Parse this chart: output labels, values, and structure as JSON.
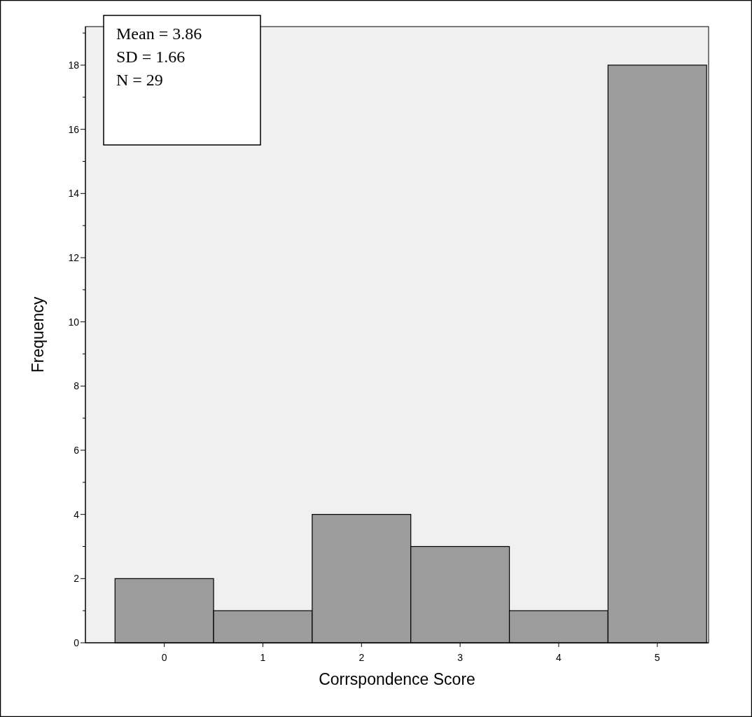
{
  "chart_data": {
    "type": "histogram",
    "xlabel": "Corrspondence Score",
    "ylabel": "Frequency",
    "bins": [
      -0.5,
      0.5,
      1.5,
      2.5,
      3.5,
      4.5,
      5.5
    ],
    "values": [
      2,
      1,
      4,
      3,
      1,
      18
    ],
    "color": "#9c9c9c",
    "xlim": [
      -0.8,
      5.52
    ],
    "xticks": [
      0,
      1,
      2,
      3,
      4,
      5
    ],
    "ylim": [
      0,
      19.2
    ],
    "yticks": [
      0,
      {
        "value": 1,
        "label": null
      },
      2,
      {
        "value": 3,
        "label": null
      },
      4,
      {
        "value": 5,
        "label": null
      },
      6,
      {
        "value": 7,
        "label": null
      },
      8,
      {
        "value": 9,
        "label": null
      },
      10,
      {
        "value": 11,
        "label": null
      },
      12,
      {
        "value": 13,
        "label": null
      },
      14,
      {
        "value": 15,
        "label": null
      },
      16,
      {
        "value": 17,
        "label": null
      },
      18,
      {
        "value": 19,
        "label": null
      }
    ],
    "grid": false,
    "annotations": [
      "Mean = 3.86",
      "SD = 1.66",
      "N = 29"
    ]
  }
}
